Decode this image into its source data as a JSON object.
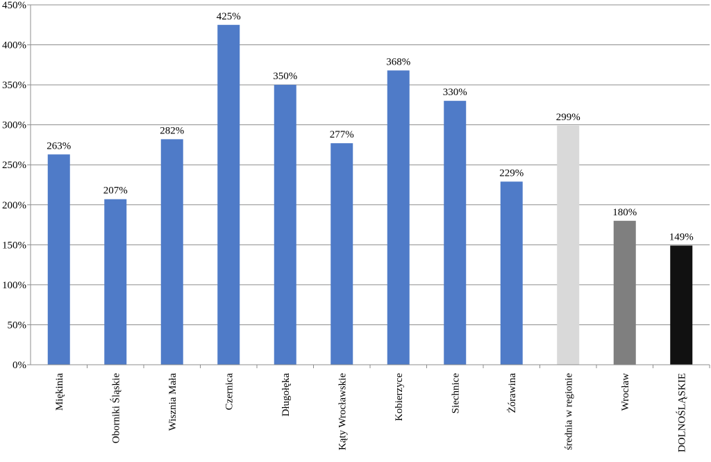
{
  "chart_data": {
    "type": "bar",
    "categories": [
      "Miękinia",
      "Oborniki Śląskie",
      "Wisznia Mała",
      "Czernica",
      "Długołęka",
      "Kąty Wrocławskie",
      "Kobierzyce",
      "Siechnice",
      "Żórawina",
      "średnia w regionie",
      "Wrocław",
      "DOLNOŚLĄSKIE"
    ],
    "values": [
      263,
      207,
      282,
      425,
      350,
      277,
      368,
      330,
      229,
      299,
      180,
      149
    ],
    "data_labels": [
      "263%",
      "207%",
      "282%",
      "425%",
      "350%",
      "277%",
      "368%",
      "330%",
      "229%",
      "299%",
      "180%",
      "149%"
    ],
    "bar_colors": [
      "#4f7bc8",
      "#4f7bc8",
      "#4f7bc8",
      "#4f7bc8",
      "#4f7bc8",
      "#4f7bc8",
      "#4f7bc8",
      "#4f7bc8",
      "#4f7bc8",
      "#d9d9d9",
      "#7f7f7f",
      "#111111"
    ],
    "yticks": [
      0,
      50,
      100,
      150,
      200,
      250,
      300,
      350,
      400,
      450
    ],
    "ytick_labels": [
      "0%",
      "50%",
      "100%",
      "150%",
      "200%",
      "250%",
      "300%",
      "350%",
      "400%",
      "450%"
    ],
    "ylim": [
      0,
      450
    ],
    "title": "",
    "xlabel": "",
    "ylabel": "",
    "grid": true,
    "legend": "none"
  }
}
